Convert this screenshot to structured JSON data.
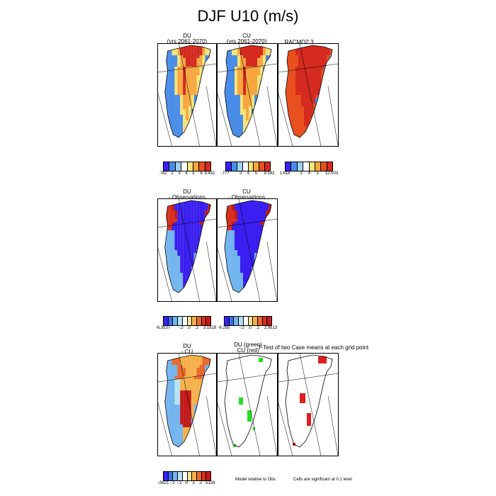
{
  "title": "DJF U10 (m/s)",
  "row1": {
    "panels": [
      {
        "title_line1": "DU",
        "title_line2": "(yrs 2061-2070)"
      },
      {
        "title_line1": "CU",
        "title_line2": "(yrs 2061-2070)"
      },
      {
        "title_line1": "RACMO2.3",
        "title_line2": ""
      }
    ],
    "colorbars": [
      {
        "ticks": [
          ".782",
          "2",
          "3",
          "4",
          "5",
          "6",
          "9.431"
        ]
      },
      {
        "ticks": [
          ".777",
          "3",
          "4",
          "5",
          "9.542"
        ]
      },
      {
        "ticks": [
          "1.618",
          "3",
          "4",
          "5",
          "12.003"
        ]
      }
    ]
  },
  "row2": {
    "panels": [
      {
        "title_line1": "DU",
        "title_line2": "- Observations"
      },
      {
        "title_line1": "CU",
        "title_line2": "- Observations"
      }
    ],
    "colorbars": [
      {
        "ticks": [
          "-6.3537",
          "-.2",
          ".0",
          ".2",
          "3.1818"
        ]
      },
      {
        "ticks": [
          "-6.285",
          "-.2",
          ".0",
          ".2",
          "2.9513"
        ]
      }
    ]
  },
  "row3": {
    "panels": [
      {
        "title_line1": "DU",
        "title_line2": "- CU"
      },
      {
        "title_line1": "DU (green)",
        "title_line2": "CU (red)"
      },
      {
        "title_line1": "",
        "title_line2": ""
      }
    ],
    "ttest_title": "T-Test of two Case means at each grid point",
    "colorbar": {
      "ticks": [
        "-.6621",
        "-.2",
        "-.1",
        ".0",
        ".1",
        ".2",
        ".5128"
      ]
    },
    "note_left": "Model relative to Obs",
    "note_right": "Cells are significant at 0.1 level"
  },
  "palettes": {
    "wind": [
      "#3a1ff0",
      "#4a8de8",
      "#9fd2ef",
      "#ffffff",
      "#f5e47a",
      "#f7a640",
      "#e8501f",
      "#d42a1f"
    ],
    "bias": [
      "#3a1ff0",
      "#3f6fe8",
      "#73b5ef",
      "#b5e2f2",
      "#ffffff",
      "#f9e39a",
      "#f5b04a",
      "#e9682a",
      "#d8301f",
      "#c21a1a"
    ],
    "diff": [
      "#3a1ff0",
      "#3f6fe8",
      "#73b5ef",
      "#b5e2f2",
      "#ffffff",
      "#f9e39a",
      "#f5b04a",
      "#e9682a",
      "#d8301f",
      "#c21a1a"
    ],
    "sig_green": "#22e022",
    "sig_red": "#e01e1e"
  },
  "chart_data": [
    {
      "type": "heatmap",
      "panel": "DU (yrs 2061-2070)",
      "colorbar_ticks": [
        0.782,
        2,
        3,
        4,
        5,
        6,
        9.431
      ]
    },
    {
      "type": "heatmap",
      "panel": "CU (yrs 2061-2070)",
      "colorbar_ticks": [
        0.777,
        3,
        4,
        5,
        9.542
      ]
    },
    {
      "type": "heatmap",
      "panel": "RACMO2.3",
      "colorbar_ticks": [
        1.618,
        3,
        4,
        5,
        12.003
      ]
    },
    {
      "type": "heatmap",
      "panel": "DU - Observations",
      "colorbar_ticks": [
        -6.3537,
        -0.2,
        0.0,
        0.2,
        3.1818
      ]
    },
    {
      "type": "heatmap",
      "panel": "CU - Observations",
      "colorbar_ticks": [
        -6.285,
        -0.2,
        0.0,
        0.2,
        2.9513
      ]
    },
    {
      "type": "heatmap",
      "panel": "DU - CU",
      "colorbar_ticks": [
        -0.6621,
        -0.2,
        -0.1,
        0.0,
        0.1,
        0.2,
        0.5128
      ]
    }
  ]
}
